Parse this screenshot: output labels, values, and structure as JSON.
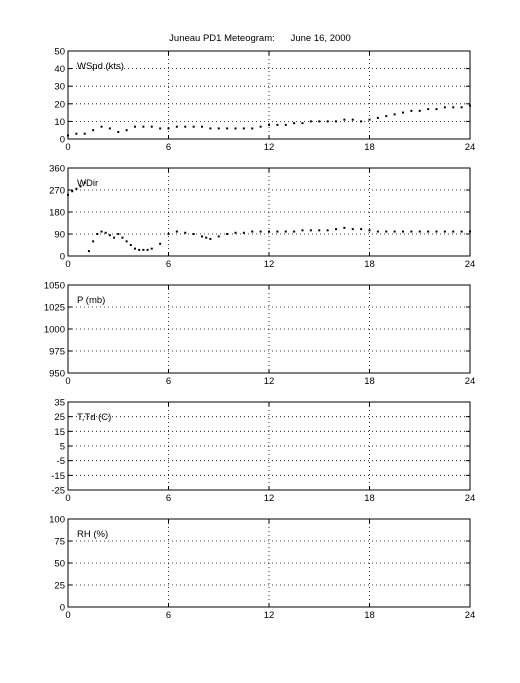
{
  "title": "Juneau PD1 Meteogram:      June 16, 2000",
  "chart_data": [
    {
      "type": "scatter",
      "label": "WSpd (kts)",
      "xlim": [
        0,
        24
      ],
      "ylim": [
        0,
        50
      ],
      "xticks": [
        0,
        6,
        12,
        18,
        24
      ],
      "yticks": [
        0,
        10,
        20,
        30,
        40,
        50
      ],
      "grid": true,
      "series": [
        {
          "x": [
            0,
            0.5,
            1,
            1.5,
            2,
            2.5,
            3,
            3.5,
            4,
            4.5,
            5,
            5.5,
            6,
            6.5,
            7,
            7.5,
            8,
            8.5,
            9,
            9.5,
            10,
            10.5,
            11,
            11.5,
            12,
            12.5,
            13,
            13.5,
            14,
            14.5,
            15,
            15.5,
            16,
            16.5,
            17,
            17.5,
            18,
            18.5,
            19,
            19.5,
            20,
            20.5,
            21,
            21.5,
            22,
            22.5,
            23,
            23.5,
            24
          ],
          "values": [
            2,
            3,
            3,
            5,
            7,
            6,
            4,
            5,
            7,
            7,
            7,
            6,
            6,
            7,
            7,
            7,
            7,
            6,
            6,
            6,
            6,
            6,
            6,
            7,
            8,
            8,
            8,
            9,
            9,
            10,
            10,
            10,
            10,
            11,
            11,
            10,
            11,
            12,
            13,
            14,
            15,
            16,
            16,
            17,
            17,
            18,
            18,
            18,
            19
          ]
        }
      ]
    },
    {
      "type": "scatter",
      "label": "WDir",
      "xlim": [
        0,
        24
      ],
      "ylim": [
        0,
        360
      ],
      "xticks": [
        0,
        6,
        12,
        18,
        24
      ],
      "yticks": [
        0,
        90,
        180,
        270,
        360
      ],
      "grid": true,
      "series": [
        {
          "x": [
            0,
            0.25,
            0.5,
            0.75,
            1,
            1.25,
            1.5,
            1.75,
            2,
            2.25,
            2.5,
            2.75,
            3,
            3.25,
            3.5,
            3.75,
            4,
            4.25,
            4.5,
            4.75,
            5,
            5.5,
            6,
            6.5,
            7,
            7.5,
            8,
            8.25,
            8.5,
            9,
            9.5,
            10,
            10.5,
            11,
            11.5,
            12,
            12.5,
            13,
            13.5,
            14,
            14.5,
            15,
            15.5,
            16,
            16.5,
            17,
            17.5,
            18,
            18.5,
            19,
            19.5,
            20,
            20.5,
            21,
            21.5,
            22,
            22.5,
            23,
            23.5,
            24
          ],
          "values": [
            250,
            265,
            275,
            285,
            300,
            20,
            60,
            90,
            100,
            95,
            85,
            75,
            90,
            75,
            60,
            45,
            30,
            25,
            25,
            25,
            30,
            50,
            90,
            100,
            95,
            90,
            80,
            75,
            70,
            80,
            90,
            95,
            95,
            100,
            100,
            100,
            100,
            100,
            100,
            105,
            105,
            105,
            105,
            110,
            115,
            110,
            110,
            105,
            100,
            100,
            100,
            100,
            100,
            100,
            100,
            100,
            100,
            100,
            100,
            100
          ]
        }
      ]
    },
    {
      "type": "scatter",
      "label": "P (mb)",
      "xlim": [
        0,
        24
      ],
      "ylim": [
        950,
        1050
      ],
      "xticks": [
        0,
        6,
        12,
        18,
        24
      ],
      "yticks": [
        950,
        975,
        1000,
        1025,
        1050
      ],
      "grid": true,
      "series": []
    },
    {
      "type": "scatter",
      "label": "T,Td (C)",
      "xlim": [
        0,
        24
      ],
      "ylim": [
        -25,
        35
      ],
      "xticks": [
        0,
        6,
        12,
        18,
        24
      ],
      "yticks": [
        -25,
        -15,
        -5,
        5,
        15,
        25,
        35
      ],
      "grid": true,
      "series": []
    },
    {
      "type": "scatter",
      "label": "RH (%)",
      "xlim": [
        0,
        24
      ],
      "ylim": [
        0,
        100
      ],
      "xticks": [
        0,
        6,
        12,
        18,
        24
      ],
      "yticks": [
        0,
        25,
        50,
        75,
        100
      ],
      "grid": true,
      "series": []
    }
  ]
}
